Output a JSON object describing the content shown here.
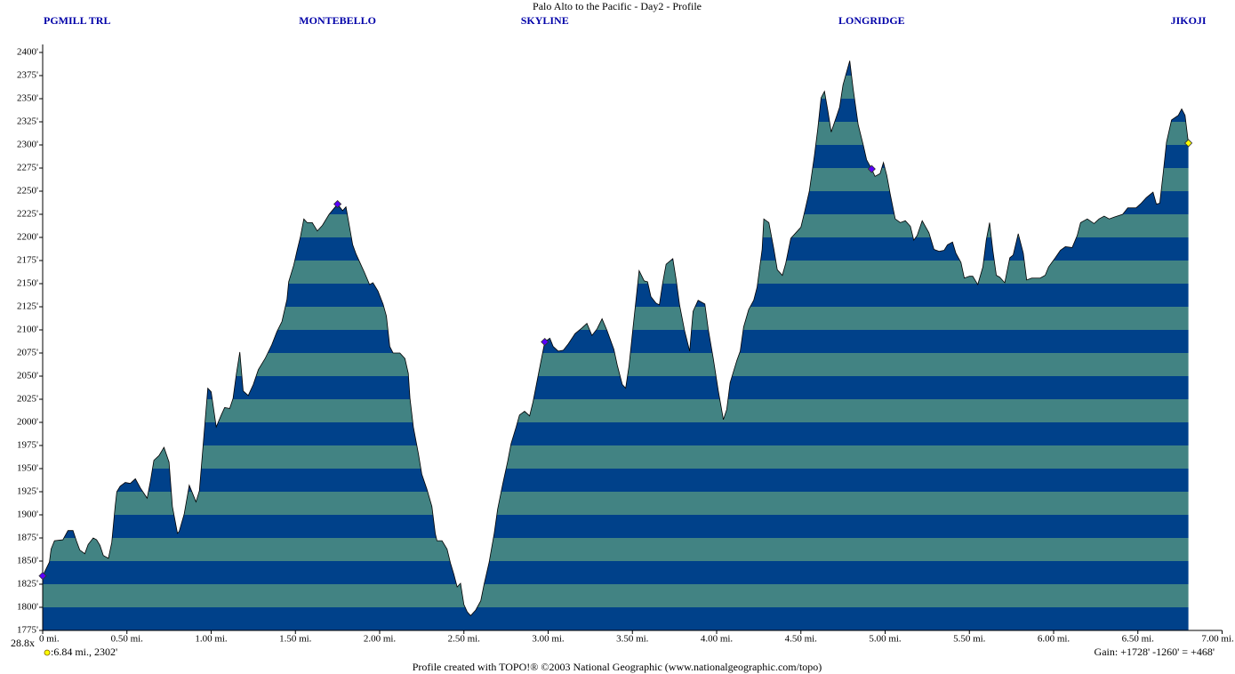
{
  "chart_data": {
    "type": "area",
    "title": "Palo Alto to the Pacific - Day2 - Profile",
    "x": [
      0,
      0.04,
      0.05,
      0.07,
      0.12,
      0.15,
      0.18,
      0.2,
      0.22,
      0.25,
      0.27,
      0.3,
      0.32,
      0.34,
      0.36,
      0.39,
      0.41,
      0.43,
      0.44,
      0.46,
      0.49,
      0.52,
      0.55,
      0.58,
      0.62,
      0.64,
      0.66,
      0.69,
      0.72,
      0.75,
      0.77,
      0.8,
      0.81,
      0.84,
      0.87,
      0.89,
      0.91,
      0.93,
      0.95,
      0.98,
      1.0,
      1.03,
      1.06,
      1.08,
      1.11,
      1.13,
      1.15,
      1.17,
      1.19,
      1.22,
      1.25,
      1.28,
      1.32,
      1.36,
      1.39,
      1.42,
      1.45,
      1.46,
      1.49,
      1.51,
      1.53,
      1.55,
      1.57,
      1.6,
      1.63,
      1.66,
      1.7,
      1.75,
      1.78,
      1.8,
      1.84,
      1.86,
      1.88,
      1.91,
      1.94,
      1.96,
      1.99,
      2.02,
      2.04,
      2.06,
      2.08,
      2.12,
      2.15,
      2.17,
      2.18,
      2.2,
      2.23,
      2.25,
      2.28,
      2.31,
      2.33,
      2.34,
      2.37,
      2.4,
      2.42,
      2.44,
      2.46,
      2.48,
      2.5,
      2.52,
      2.54,
      2.57,
      2.6,
      2.62,
      2.65,
      2.68,
      2.7,
      2.73,
      2.76,
      2.78,
      2.81,
      2.83,
      2.86,
      2.89,
      2.91,
      2.94,
      2.98,
      3.01,
      3.03,
      3.06,
      3.09,
      3.12,
      3.16,
      3.2,
      3.23,
      3.26,
      3.29,
      3.32,
      3.35,
      3.39,
      3.41,
      3.44,
      3.46,
      3.48,
      3.5,
      3.54,
      3.57,
      3.59,
      3.61,
      3.64,
      3.66,
      3.68,
      3.7,
      3.74,
      3.76,
      3.78,
      3.81,
      3.84,
      3.86,
      3.89,
      3.93,
      3.95,
      3.98,
      4.01,
      4.04,
      4.06,
      4.08,
      4.12,
      4.14,
      4.16,
      4.19,
      4.22,
      4.24,
      4.27,
      4.28,
      4.31,
      4.34,
      4.36,
      4.39,
      4.41,
      4.44,
      4.47,
      4.5,
      4.52,
      4.55,
      4.58,
      4.6,
      4.62,
      4.64,
      4.66,
      4.68,
      4.71,
      4.73,
      4.75,
      4.79,
      4.81,
      4.84,
      4.87,
      4.89,
      4.92,
      4.94,
      4.97,
      4.99,
      5.01,
      5.03,
      5.06,
      5.09,
      5.12,
      5.15,
      5.17,
      5.19,
      5.22,
      5.26,
      5.29,
      5.32,
      5.35,
      5.37,
      5.4,
      5.42,
      5.45,
      5.47,
      5.5,
      5.52,
      5.55,
      5.58,
      5.6,
      5.62,
      5.64,
      5.66,
      5.68,
      5.71,
      5.74,
      5.76,
      5.79,
      5.82,
      5.84,
      5.87,
      5.92,
      5.95,
      5.97,
      6.01,
      6.04,
      6.07,
      6.11,
      6.14,
      6.16,
      6.2,
      6.24,
      6.27,
      6.3,
      6.33,
      6.36,
      6.41,
      6.44,
      6.49,
      6.52,
      6.55,
      6.59,
      6.61,
      6.63,
      6.65,
      6.67,
      6.7,
      6.74,
      6.76,
      6.78,
      6.8
    ],
    "values": [
      1834,
      1849,
      1863,
      1872,
      1873,
      1883,
      1883,
      1872,
      1862,
      1858,
      1868,
      1875,
      1873,
      1867,
      1856,
      1853,
      1870,
      1909,
      1925,
      1931,
      1935,
      1934,
      1939,
      1929,
      1918,
      1937,
      1959,
      1964,
      1973,
      1957,
      1909,
      1880,
      1882,
      1901,
      1932,
      1923,
      1914,
      1926,
      1970,
      2037,
      2033,
      1995,
      2008,
      2016,
      2015,
      2026,
      2053,
      2076,
      2034,
      2029,
      2041,
      2057,
      2069,
      2084,
      2098,
      2109,
      2133,
      2152,
      2170,
      2186,
      2201,
      2220,
      2216,
      2216,
      2207,
      2213,
      2225,
      2236,
      2229,
      2233,
      2192,
      2182,
      2174,
      2162,
      2149,
      2151,
      2142,
      2128,
      2115,
      2082,
      2075,
      2075,
      2069,
      2053,
      2026,
      1995,
      1966,
      1944,
      1928,
      1909,
      1880,
      1872,
      1872,
      1863,
      1848,
      1836,
      1822,
      1826,
      1803,
      1795,
      1791,
      1797,
      1807,
      1825,
      1849,
      1880,
      1906,
      1933,
      1958,
      1977,
      1995,
      2008,
      2012,
      2007,
      2022,
      2050,
      2087,
      2091,
      2082,
      2077,
      2078,
      2085,
      2096,
      2102,
      2107,
      2094,
      2101,
      2112,
      2099,
      2079,
      2062,
      2041,
      2037,
      2061,
      2096,
      2164,
      2153,
      2152,
      2136,
      2129,
      2127,
      2151,
      2171,
      2177,
      2154,
      2127,
      2099,
      2077,
      2120,
      2132,
      2128,
      2101,
      2069,
      2034,
      2003,
      2014,
      2043,
      2067,
      2077,
      2103,
      2122,
      2132,
      2146,
      2187,
      2220,
      2216,
      2187,
      2165,
      2159,
      2172,
      2199,
      2205,
      2211,
      2226,
      2250,
      2288,
      2317,
      2351,
      2358,
      2337,
      2314,
      2330,
      2341,
      2365,
      2391,
      2361,
      2322,
      2300,
      2284,
      2274,
      2266,
      2269,
      2281,
      2267,
      2247,
      2220,
      2216,
      2218,
      2212,
      2197,
      2202,
      2218,
      2205,
      2187,
      2185,
      2186,
      2192,
      2195,
      2183,
      2173,
      2156,
      2158,
      2158,
      2149,
      2168,
      2197,
      2216,
      2185,
      2159,
      2157,
      2151,
      2178,
      2181,
      2204,
      2183,
      2154,
      2156,
      2156,
      2159,
      2168,
      2178,
      2186,
      2190,
      2189,
      2202,
      2216,
      2220,
      2215,
      2220,
      2223,
      2220,
      2222,
      2225,
      2232,
      2232,
      2237,
      2243,
      2249,
      2236,
      2237,
      2269,
      2303,
      2327,
      2332,
      2339,
      2332,
      2302
    ],
    "band_colors": [
      "#00418a",
      "#428383"
    ],
    "outline_color": "#000000",
    "waypoints": [
      {
        "name": "PGMILL TRL",
        "x": 0,
        "y": 1834,
        "color": "#5a00ff"
      },
      {
        "name": "MONTEBELLO",
        "x": 1.75,
        "y": 2236,
        "color": "#5a00ff"
      },
      {
        "name": "SKYLINE",
        "x": 2.98,
        "y": 2087,
        "color": "#5a00ff"
      },
      {
        "name": "LONGRIDGE",
        "x": 4.92,
        "y": 2274,
        "color": "#5a00ff"
      },
      {
        "name": "JIKOJI",
        "x": 6.8,
        "y": 2302,
        "color": "#ffff00"
      }
    ],
    "xlim": [
      0,
      7
    ],
    "xticks": [
      {
        "value": 0,
        "label": "0 mi."
      },
      {
        "value": 0.5,
        "label": "0.50 mi."
      },
      {
        "value": 1,
        "label": "1.00 mi."
      },
      {
        "value": 1.5,
        "label": "1.50 mi."
      },
      {
        "value": 2,
        "label": "2.00 mi."
      },
      {
        "value": 2.5,
        "label": "2.50 mi."
      },
      {
        "value": 3,
        "label": "3.00 mi."
      },
      {
        "value": 3.5,
        "label": "3.50 mi."
      },
      {
        "value": 4,
        "label": "4.00 mi."
      },
      {
        "value": 4.5,
        "label": "4.50 mi."
      },
      {
        "value": 5,
        "label": "5.00 mi."
      },
      {
        "value": 5.5,
        "label": "5.50 mi."
      },
      {
        "value": 6,
        "label": "6.00 mi."
      },
      {
        "value": 6.5,
        "label": "6.50 mi."
      },
      {
        "value": 7,
        "label": "7.00 mi."
      }
    ],
    "ylim": [
      1775,
      2400
    ],
    "yticks": [
      {
        "value": 1775,
        "label": "1775'"
      },
      {
        "value": 1800,
        "label": "1800'"
      },
      {
        "value": 1825,
        "label": "1825'"
      },
      {
        "value": 1850,
        "label": "1850'"
      },
      {
        "value": 1875,
        "label": "1875'"
      },
      {
        "value": 1900,
        "label": "1900'"
      },
      {
        "value": 1925,
        "label": "1925'"
      },
      {
        "value": 1950,
        "label": "1950'"
      },
      {
        "value": 1975,
        "label": "1975'"
      },
      {
        "value": 2000,
        "label": "2000'"
      },
      {
        "value": 2025,
        "label": "2025'"
      },
      {
        "value": 2050,
        "label": "2050'"
      },
      {
        "value": 2075,
        "label": "2075'"
      },
      {
        "value": 2100,
        "label": "2100'"
      },
      {
        "value": 2125,
        "label": "2125'"
      },
      {
        "value": 2150,
        "label": "2150'"
      },
      {
        "value": 2175,
        "label": "2175'"
      },
      {
        "value": 2200,
        "label": "2200'"
      },
      {
        "value": 2225,
        "label": "2225'"
      },
      {
        "value": 2250,
        "label": "2250'"
      },
      {
        "value": 2275,
        "label": "2275'"
      },
      {
        "value": 2300,
        "label": "2300'"
      },
      {
        "value": 2325,
        "label": "2325'"
      },
      {
        "value": 2350,
        "label": "2350'"
      },
      {
        "value": 2375,
        "label": "2375'"
      },
      {
        "value": 2400,
        "label": "2400'"
      }
    ],
    "exaggeration": "28.8x",
    "cursor_readout": ":6.84 mi., 2302'",
    "gain": "Gain: +1728' -1260' = +468'",
    "footer": "Profile created with TOPO!® ©2003 National Geographic (www.nationalgeographic.com/topo)"
  }
}
